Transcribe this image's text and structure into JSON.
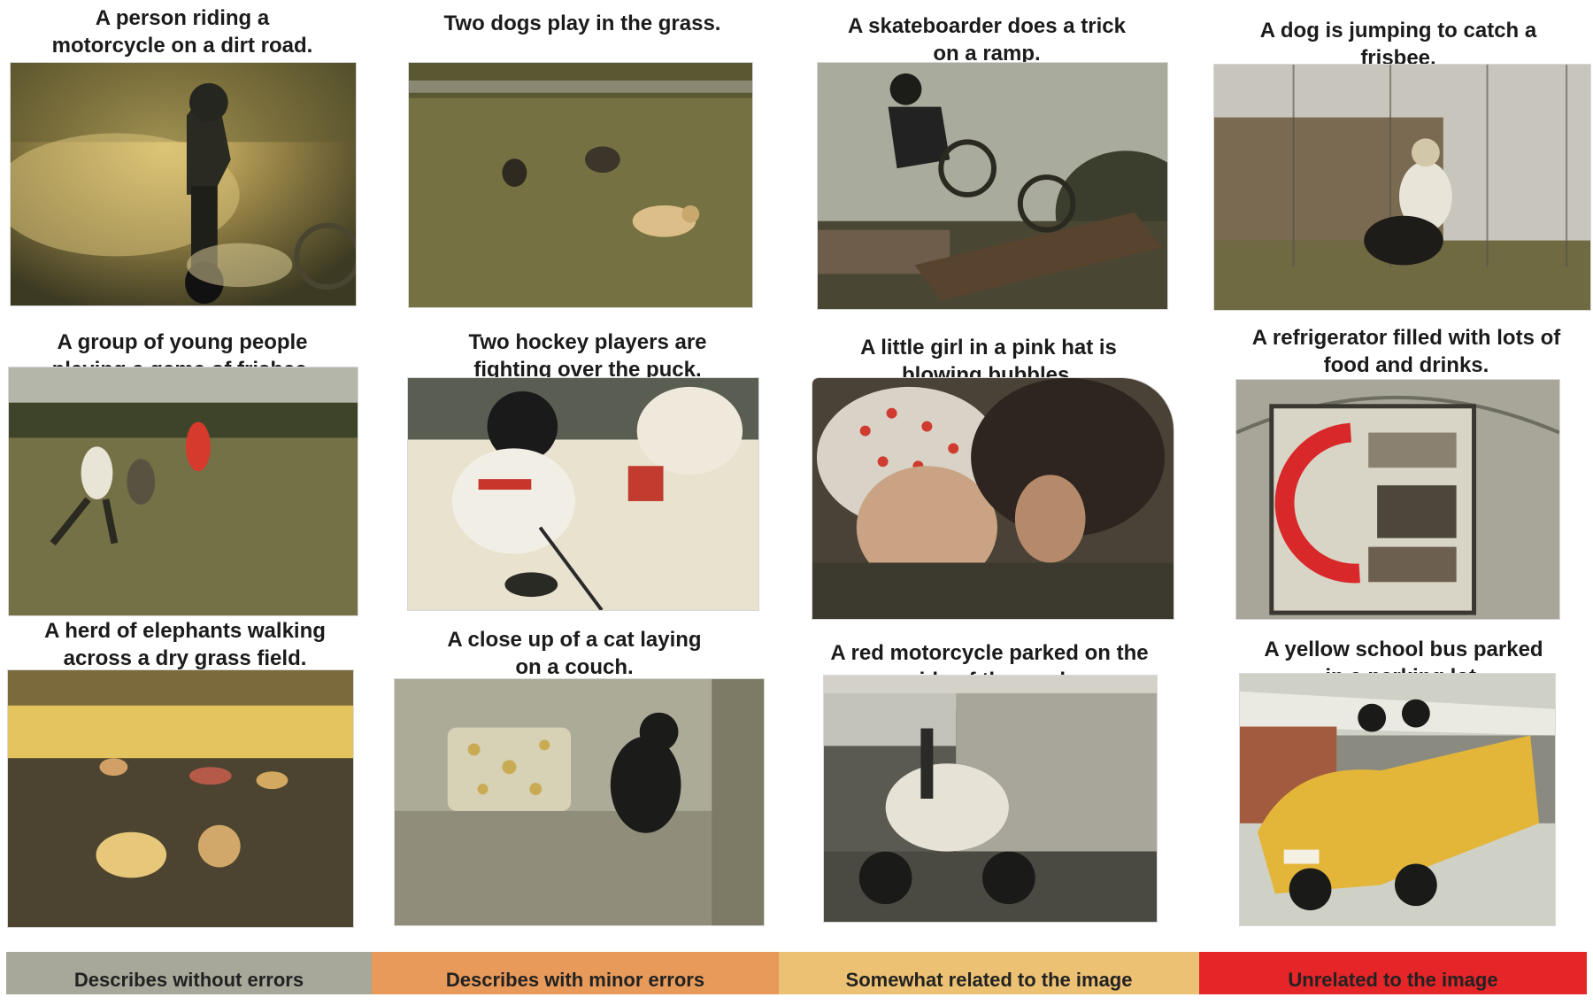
{
  "cells": [
    {
      "caption_lines": [
        "A person riding a",
        "motorcycle on a dirt road."
      ],
      "photo": "motocross-rider-dirt-road"
    },
    {
      "caption_lines": [
        "Two dogs play in the grass."
      ],
      "photo": "dogs-running-in-park"
    },
    {
      "caption_lines": [
        "A skateboarder does a trick",
        "on a ramp."
      ],
      "photo": "bmx-rider-on-ramp"
    },
    {
      "caption_lines": [
        "A dog is jumping to catch a",
        "frisbee."
      ],
      "photo": "woman-with-dog-by-fence"
    },
    {
      "caption_lines": [
        "A group of young people",
        "playing a game of frisbee."
      ],
      "photo": "frisbee-players-field"
    },
    {
      "caption_lines": [
        "Two hockey players are",
        "fighting over the puck."
      ],
      "photo": "hockey-players-on-ice"
    },
    {
      "caption_lines": [
        "A little girl in a pink hat is",
        "blowing bubbles."
      ],
      "photo": "children-in-knit-hats"
    },
    {
      "caption_lines": [
        "A refrigerator filled with lots of",
        "food and drinks."
      ],
      "photo": "no-parking-sign-with-stickers"
    },
    {
      "caption_lines": [
        "A herd of elephants walking",
        "across a dry grass field."
      ],
      "photo": "sheep-grazing-field"
    },
    {
      "caption_lines": [
        "A close up of a cat laying",
        "on a couch."
      ],
      "photo": "black-cat-on-couch"
    },
    {
      "caption_lines": [
        "A red motorcycle parked on the",
        "side of the road."
      ],
      "photo": "scooter-parked-lot"
    },
    {
      "caption_lines": [
        "A yellow school bus parked",
        "in a parking lot."
      ],
      "photo": "yellow-car-limo"
    }
  ],
  "legend": [
    {
      "label": "Describes without errors",
      "color": "#a7a89a"
    },
    {
      "label": "Describes with minor errors",
      "color": "#e89a5a"
    },
    {
      "label": "Somewhat related to the image",
      "color": "#ecc173"
    },
    {
      "label": "Unrelated to the image",
      "color": "#e52528"
    }
  ],
  "caption_colors": {
    "background": "#ffffff"
  }
}
